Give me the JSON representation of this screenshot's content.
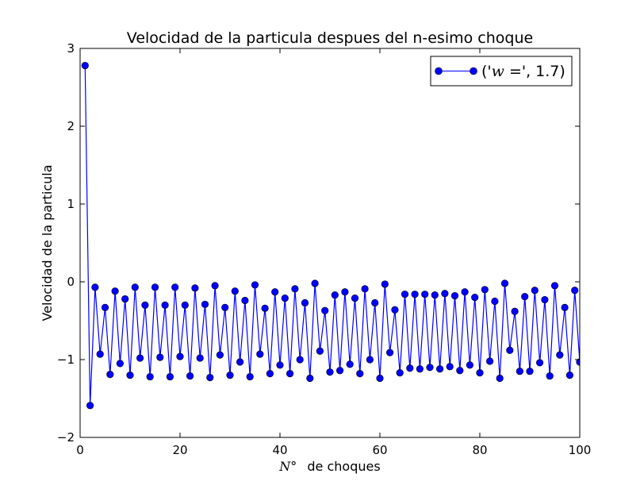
{
  "chart_data": {
    "type": "line",
    "title": "Velocidad de la particula despues del n-esimo choque",
    "xlabel_math": "N°",
    "xlabel": "de choques",
    "ylabel": "Velocidad de la particula",
    "xlim": [
      0,
      100
    ],
    "ylim": [
      -2,
      3
    ],
    "xticks": [
      0,
      20,
      40,
      60,
      80,
      100
    ],
    "yticks": [
      -2,
      -1,
      0,
      1,
      2,
      3
    ],
    "xtick_labels": [
      "0",
      "20",
      "40",
      "60",
      "80",
      "100"
    ],
    "ytick_labels": [
      "−2",
      "−1",
      "0",
      "1",
      "2",
      "3"
    ],
    "grid": false,
    "legend_position": "upper-right",
    "series": [
      {
        "name_prefix": "('",
        "name_math": "w",
        "name_suffix": " =', 1.7)",
        "color": "#0000ff",
        "marker": "circle",
        "x": [
          1,
          2,
          3,
          4,
          5,
          6,
          7,
          8,
          9,
          10,
          11,
          12,
          13,
          14,
          15,
          16,
          17,
          18,
          19,
          20,
          21,
          22,
          23,
          24,
          25,
          26,
          27,
          28,
          29,
          30,
          31,
          32,
          33,
          34,
          35,
          36,
          37,
          38,
          39,
          40,
          41,
          42,
          43,
          44,
          45,
          46,
          47,
          48,
          49,
          50,
          51,
          52,
          53,
          54,
          55,
          56,
          57,
          58,
          59,
          60,
          61,
          62,
          63,
          64,
          65,
          66,
          67,
          68,
          69,
          70,
          71,
          72,
          73,
          74,
          75,
          76,
          77,
          78,
          79,
          80,
          81,
          82,
          83,
          84,
          85,
          86,
          87,
          88,
          89,
          90,
          91,
          92,
          93,
          94,
          95,
          96,
          97,
          98,
          99,
          100
        ],
        "y": [
          2.78,
          -1.59,
          -0.07,
          -0.93,
          -0.33,
          -1.19,
          -0.12,
          -1.05,
          -0.22,
          -1.2,
          -0.07,
          -0.98,
          -0.3,
          -1.22,
          -0.07,
          -0.97,
          -0.3,
          -1.22,
          -0.07,
          -0.96,
          -0.3,
          -1.21,
          -0.08,
          -0.98,
          -0.29,
          -1.23,
          -0.05,
          -0.94,
          -0.33,
          -1.2,
          -0.12,
          -1.03,
          -0.24,
          -1.22,
          -0.04,
          -0.93,
          -0.34,
          -1.18,
          -0.13,
          -1.07,
          -0.21,
          -1.18,
          -0.09,
          -1.0,
          -0.27,
          -1.24,
          -0.02,
          -0.89,
          -0.37,
          -1.16,
          -0.17,
          -1.14,
          -0.13,
          -1.06,
          -0.21,
          -1.18,
          -0.09,
          -1.0,
          -0.27,
          -1.24,
          -0.03,
          -0.91,
          -0.36,
          -1.17,
          -0.16,
          -1.11,
          -0.16,
          -1.12,
          -0.16,
          -1.1,
          -0.17,
          -1.12,
          -0.15,
          -1.09,
          -0.18,
          -1.14,
          -0.13,
          -1.07,
          -0.2,
          -1.17,
          -0.1,
          -1.02,
          -0.25,
          -1.24,
          -0.02,
          -0.88,
          -0.38,
          -1.15,
          -0.19,
          -1.15,
          -0.11,
          -1.04,
          -0.23,
          -1.21,
          -0.05,
          -0.94,
          -0.33,
          -1.2,
          -0.11,
          -1.03
        ]
      }
    ]
  }
}
